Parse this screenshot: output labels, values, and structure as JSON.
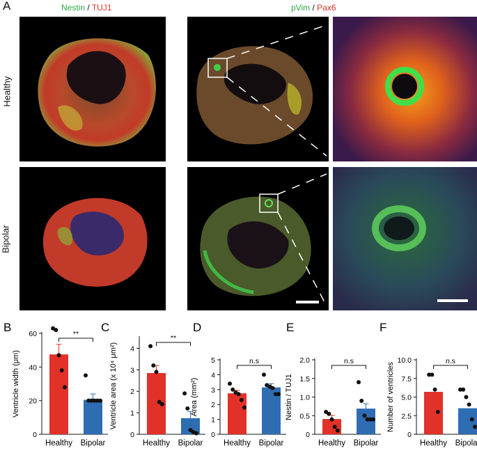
{
  "panel_a": {
    "letter": "A",
    "stain_left": {
      "part1": "Nestin",
      "sep": " / ",
      "part2": "TUJ1",
      "color1": "#2aa845",
      "color2": "#d8322a"
    },
    "stain_right": {
      "part1": "pVim",
      "sep": " / ",
      "part2": "Pax6",
      "color1": "#2aa845",
      "color2": "#d8322a"
    },
    "row_labels": [
      "Healthy",
      "Bipolar"
    ]
  },
  "colors": {
    "healthy": "#e23129",
    "bipolar": "#2f6db3",
    "dot": "#111111"
  },
  "chart_data": [
    {
      "letter": "B",
      "type": "bar",
      "ylabel": "Ventricle width (μm)",
      "categories": [
        "Healthy",
        "Bipolar"
      ],
      "values": [
        47.5,
        20.5
      ],
      "errors": [
        6.0,
        3.5
      ],
      "points": [
        [
          63,
          62,
          47,
          38,
          28
        ],
        [
          35,
          20,
          20,
          20,
          20,
          20
        ]
      ],
      "ylim": [
        0,
        60
      ],
      "yticks": [
        "0",
        "20",
        "40",
        "60"
      ],
      "ytick_values": [
        0,
        20,
        40,
        60
      ],
      "significance": "**"
    },
    {
      "letter": "C",
      "type": "bar",
      "ylabel": "Ventricle area (x 10⁴ μm²)",
      "categories": [
        "Healthy",
        "Bipolar"
      ],
      "values": [
        2.85,
        0.75
      ],
      "errors": [
        0.35,
        0.3
      ],
      "points": [
        [
          4.1,
          3.2,
          2.9,
          1.5,
          1.4
        ],
        [
          1.9,
          1.2,
          0.2,
          0.1,
          0.05
        ]
      ],
      "ylim": [
        0,
        4.5
      ],
      "yticks": [
        "0",
        "1",
        "2",
        "3",
        "4"
      ],
      "ytick_values": [
        0,
        1,
        2,
        3,
        4
      ],
      "significance": "**"
    },
    {
      "letter": "D",
      "type": "bar",
      "ylabel": "Area (mm²)",
      "categories": [
        "Healthy",
        "Bipolar"
      ],
      "values": [
        2.75,
        3.15
      ],
      "errors": [
        0.2,
        0.25
      ],
      "points": [
        [
          3.4,
          3.0,
          2.8,
          2.7,
          2.3,
          1.8
        ],
        [
          4.0,
          3.3,
          3.2,
          3.1,
          2.7,
          2.7
        ]
      ],
      "ylim": [
        0,
        5
      ],
      "yticks": [
        "0",
        "1",
        "2",
        "3",
        "4",
        "5"
      ],
      "ytick_values": [
        0,
        1,
        2,
        3,
        4,
        5
      ],
      "significance": "n.s"
    },
    {
      "letter": "E",
      "type": "bar",
      "ylabel": "Nestin / TUJ1",
      "categories": [
        "Healthy",
        "Bipolar"
      ],
      "values": [
        0.41,
        0.69
      ],
      "errors": [
        0.1,
        0.13
      ],
      "points": [
        [
          0.6,
          0.55,
          0.4,
          0.2,
          0.1
        ],
        [
          1.4,
          0.9,
          0.5,
          0.4,
          0.4,
          0.4
        ]
      ],
      "ylim": [
        0,
        2.0
      ],
      "yticks": [
        "0",
        "0.5",
        "1.0",
        "1.5",
        "2.0"
      ],
      "ytick_values": [
        0,
        0.5,
        1.0,
        1.5,
        2.0
      ],
      "significance": "n.s"
    },
    {
      "letter": "F",
      "type": "bar",
      "ylabel": "Number of ventricles",
      "categories": [
        "Healthy",
        "Bipolar"
      ],
      "values": [
        5.7,
        3.5
      ],
      "errors": [
        0,
        0
      ],
      "points": [
        [
          8,
          8,
          6,
          3
        ],
        [
          6,
          6,
          5,
          4,
          2,
          1
        ]
      ],
      "ylim": [
        0,
        10
      ],
      "yticks": [
        "0",
        "2.5",
        "5.0",
        "7.5",
        "10.0"
      ],
      "ytick_values": [
        0,
        2.5,
        5.0,
        7.5,
        10.0
      ],
      "significance": "n.s"
    }
  ]
}
